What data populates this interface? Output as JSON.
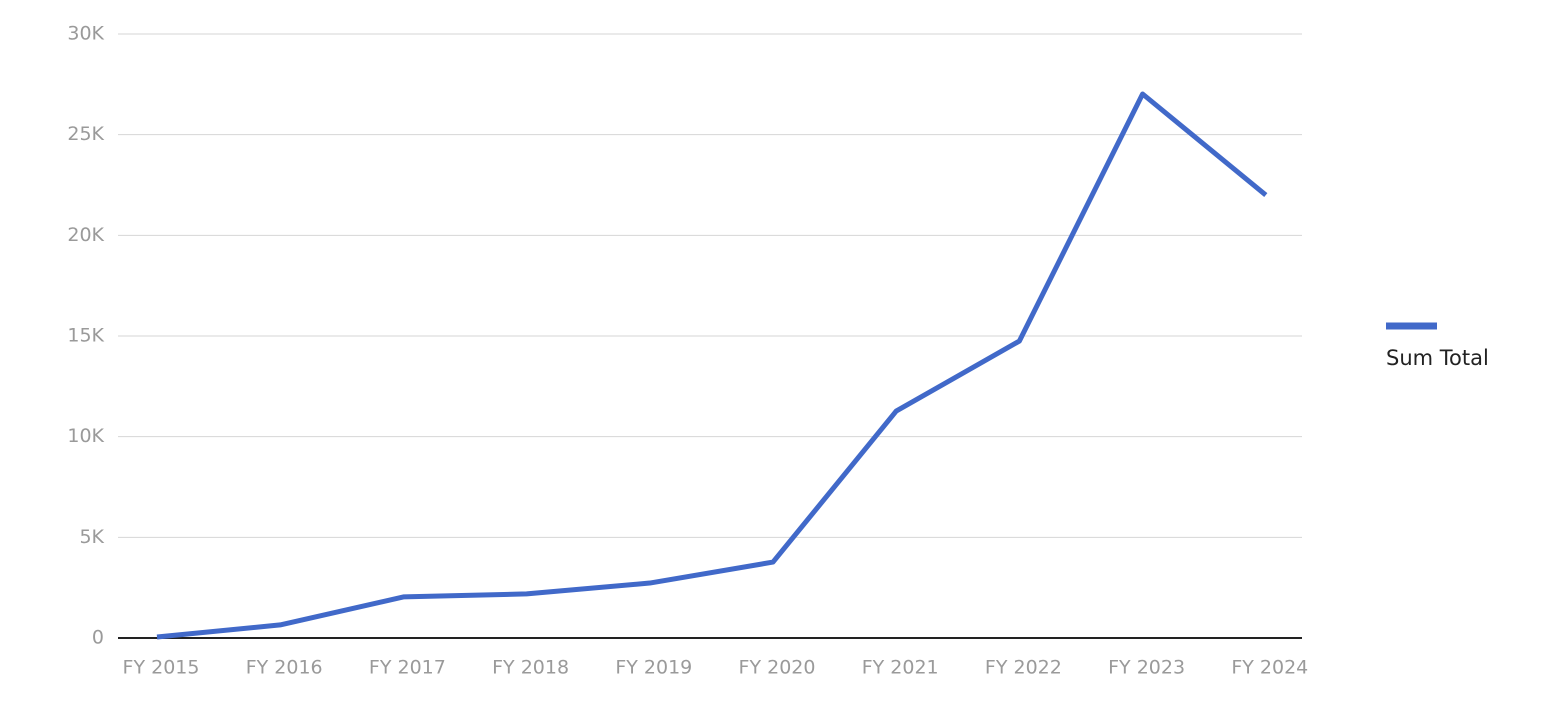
{
  "chart_data": {
    "type": "line",
    "categories": [
      "FY 2015",
      "FY 2016",
      "FY 2017",
      "FY 2018",
      "FY 2019",
      "FY 2020",
      "FY 2021",
      "FY 2022",
      "FY 2023",
      "FY 2024"
    ],
    "series": [
      {
        "name": "Sum Total",
        "color": "#4169c9",
        "values": [
          50,
          650,
          2040,
          2190,
          2730,
          3770,
          11270,
          14750,
          27020,
          22000
        ]
      }
    ],
    "ylim": [
      0,
      30000
    ],
    "yticks": [
      0,
      {
        "value": 5000,
        "label": "5K"
      },
      {
        "value": 10000,
        "label": "10K"
      },
      {
        "value": 15000,
        "label": "15K"
      },
      {
        "value": 20000,
        "label": "20K"
      },
      {
        "value": 25000,
        "label": "25K"
      },
      {
        "value": 30000,
        "label": "30K"
      }
    ],
    "grid": true,
    "legend": "right"
  }
}
